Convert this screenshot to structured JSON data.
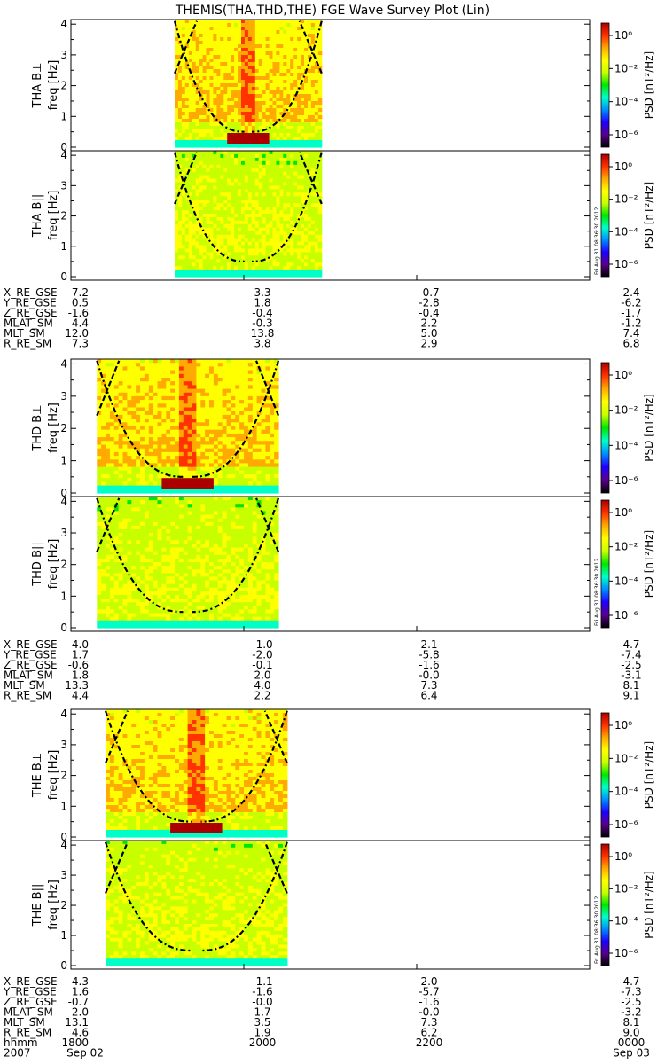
{
  "title": "THEMIS(THA,THD,THE) FGE Wave Survey Plot (Lin)",
  "colorbar": {
    "label": "PSD [nT²/Hz]",
    "ticks": [
      "10⁰",
      "10⁻²",
      "10⁻⁴",
      "10⁻⁶"
    ],
    "colors": [
      "#000000",
      "#5a008c",
      "#1e00ff",
      "#008cff",
      "#00ffc8",
      "#00e600",
      "#c8ff00",
      "#ffff00",
      "#ffaa00",
      "#ff3200",
      "#aa0000"
    ]
  },
  "stamp": "Fri Aug 31 08:36:30 2012",
  "chart_data": [
    {
      "type": "heatmap",
      "probe": "THA",
      "panels": [
        {
          "ylabel_top": "THA B⊥",
          "ylabel": "freq [Hz]",
          "yticks": [
            "0",
            "1",
            "2",
            "3",
            "4"
          ],
          "ylim": [
            0,
            4
          ],
          "data_x_range": [
            1920,
            2090
          ]
        },
        {
          "ylabel_top": "THA B||",
          "ylabel": "freq [Hz]",
          "yticks": [
            "0",
            "1",
            "2",
            "3",
            "4"
          ],
          "ylim": [
            0,
            4
          ],
          "data_x_range": [
            1920,
            2090
          ]
        }
      ],
      "ephemeris": [
        {
          "label": "X_RE_GSE",
          "values": [
            "7.2",
            "3.3",
            "-0.7",
            "2.4"
          ]
        },
        {
          "label": "Y_RE_GSE",
          "values": [
            "0.5",
            "1.8",
            "-2.8",
            "-6.2"
          ]
        },
        {
          "label": "Z_RE_GSE",
          "values": [
            "-1.6",
            "-0.4",
            "-0.4",
            "-1.7"
          ]
        },
        {
          "label": "MLAT_SM",
          "values": [
            "4.4",
            "-0.3",
            "2.2",
            "-1.2"
          ]
        },
        {
          "label": "MLT_SM",
          "values": [
            "12.0",
            "13.8",
            "5.0",
            "7.4"
          ]
        },
        {
          "label": "R_RE_SM",
          "values": [
            "7.3",
            "3.8",
            "2.9",
            "6.8"
          ]
        }
      ]
    },
    {
      "type": "heatmap",
      "probe": "THD",
      "panels": [
        {
          "ylabel_top": "THD B⊥",
          "ylabel": "freq [Hz]",
          "yticks": [
            "0",
            "1",
            "2",
            "3",
            "4"
          ],
          "ylim": [
            0,
            4
          ],
          "data_x_range": [
            1830,
            2040
          ]
        },
        {
          "ylabel_top": "THD B||",
          "ylabel": "freq [Hz]",
          "yticks": [
            "0",
            "1",
            "2",
            "3",
            "4"
          ],
          "ylim": [
            0,
            4
          ],
          "data_x_range": [
            1830,
            2040
          ]
        }
      ],
      "ephemeris": [
        {
          "label": "X_RE_GSE",
          "values": [
            "4.0",
            "-1.0",
            "2.1",
            "4.7"
          ]
        },
        {
          "label": "Y_RE_GSE",
          "values": [
            "1.7",
            "-2.0",
            "-5.8",
            "-7.4"
          ]
        },
        {
          "label": "Z_RE_GSE",
          "values": [
            "-0.6",
            "-0.1",
            "-1.6",
            "-2.5"
          ]
        },
        {
          "label": "MLAT_SM",
          "values": [
            "1.8",
            "2.0",
            "-0.0",
            "-3.1"
          ]
        },
        {
          "label": "MLT_SM",
          "values": [
            "13.3",
            "4.0",
            "7.3",
            "8.1"
          ]
        },
        {
          "label": "R_RE_SM",
          "values": [
            "4.4",
            "2.2",
            "6.4",
            "9.1"
          ]
        }
      ]
    },
    {
      "type": "heatmap",
      "probe": "THE",
      "panels": [
        {
          "ylabel_top": "THE B⊥",
          "ylabel": "freq [Hz]",
          "yticks": [
            "0",
            "1",
            "2",
            "3",
            "4"
          ],
          "ylim": [
            0,
            4
          ],
          "data_x_range": [
            1840,
            2050
          ]
        },
        {
          "ylabel_top": "THE B||",
          "ylabel": "freq [Hz]",
          "yticks": [
            "0",
            "1",
            "2",
            "3",
            "4"
          ],
          "ylim": [
            0,
            4
          ],
          "data_x_range": [
            1840,
            2050
          ]
        }
      ],
      "ephemeris": [
        {
          "label": "X_RE_GSE",
          "values": [
            "4.3",
            "-1.1",
            "2.0",
            "4.7"
          ]
        },
        {
          "label": "Y_RE_GSE",
          "values": [
            "1.6",
            "-1.6",
            "-5.7",
            "-7.3"
          ]
        },
        {
          "label": "Z_RE_GSE",
          "values": [
            "-0.7",
            "-0.0",
            "-1.6",
            "-2.5"
          ]
        },
        {
          "label": "MLAT_SM",
          "values": [
            "2.0",
            "1.7",
            "-0.0",
            "-3.2"
          ]
        },
        {
          "label": "MLT_SM",
          "values": [
            "13.1",
            "3.5",
            "7.3",
            "8.1"
          ]
        },
        {
          "label": "R_RE_SM",
          "values": [
            "4.6",
            "1.9",
            "6.2",
            "9.0"
          ]
        },
        {
          "label": "hhmm",
          "values": [
            "1800",
            "2000",
            "2200",
            "0000"
          ]
        }
      ]
    }
  ],
  "x_axis": {
    "hhmm_label": "hhmm",
    "ticks": [
      "1800",
      "2000",
      "2200",
      "0000"
    ],
    "date_year": "2007",
    "date_start": "Sep 02",
    "date_end": "Sep 03"
  }
}
